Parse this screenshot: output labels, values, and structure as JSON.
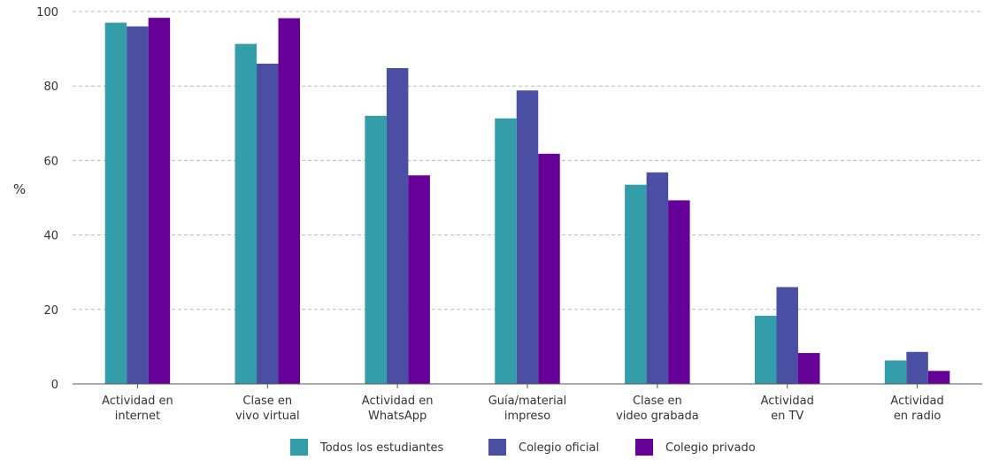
{
  "chart_data": {
    "type": "bar",
    "title": "",
    "xlabel": "",
    "ylabel": "%",
    "ylim": [
      0,
      100
    ],
    "yticks": [
      0,
      20,
      40,
      60,
      80,
      100
    ],
    "grid": true,
    "legend_position": "bottom",
    "categories": [
      [
        "Actividad en",
        "internet"
      ],
      [
        "Clase en",
        "vivo virtual"
      ],
      [
        "Actividad en",
        "WhatsApp"
      ],
      [
        "Guía/material",
        "impreso"
      ],
      [
        "Clase en",
        "video grabada"
      ],
      [
        "Actividad",
        "en TV"
      ],
      [
        "Actividad",
        "en radio"
      ]
    ],
    "series": [
      {
        "name": "Todos los estudiantes",
        "color": "#339EAA",
        "values": [
          97,
          91.3,
          72,
          71.3,
          53.5,
          18.3,
          6.3
        ]
      },
      {
        "name": "Colegio oficial",
        "color": "#4A4FA3",
        "values": [
          96,
          86,
          84.8,
          78.8,
          56.8,
          26,
          8.6
        ]
      },
      {
        "name": "Colegio privado",
        "color": "#660099",
        "values": [
          98.3,
          98.2,
          56,
          61.8,
          49.3,
          8.3,
          3.5
        ]
      }
    ]
  }
}
